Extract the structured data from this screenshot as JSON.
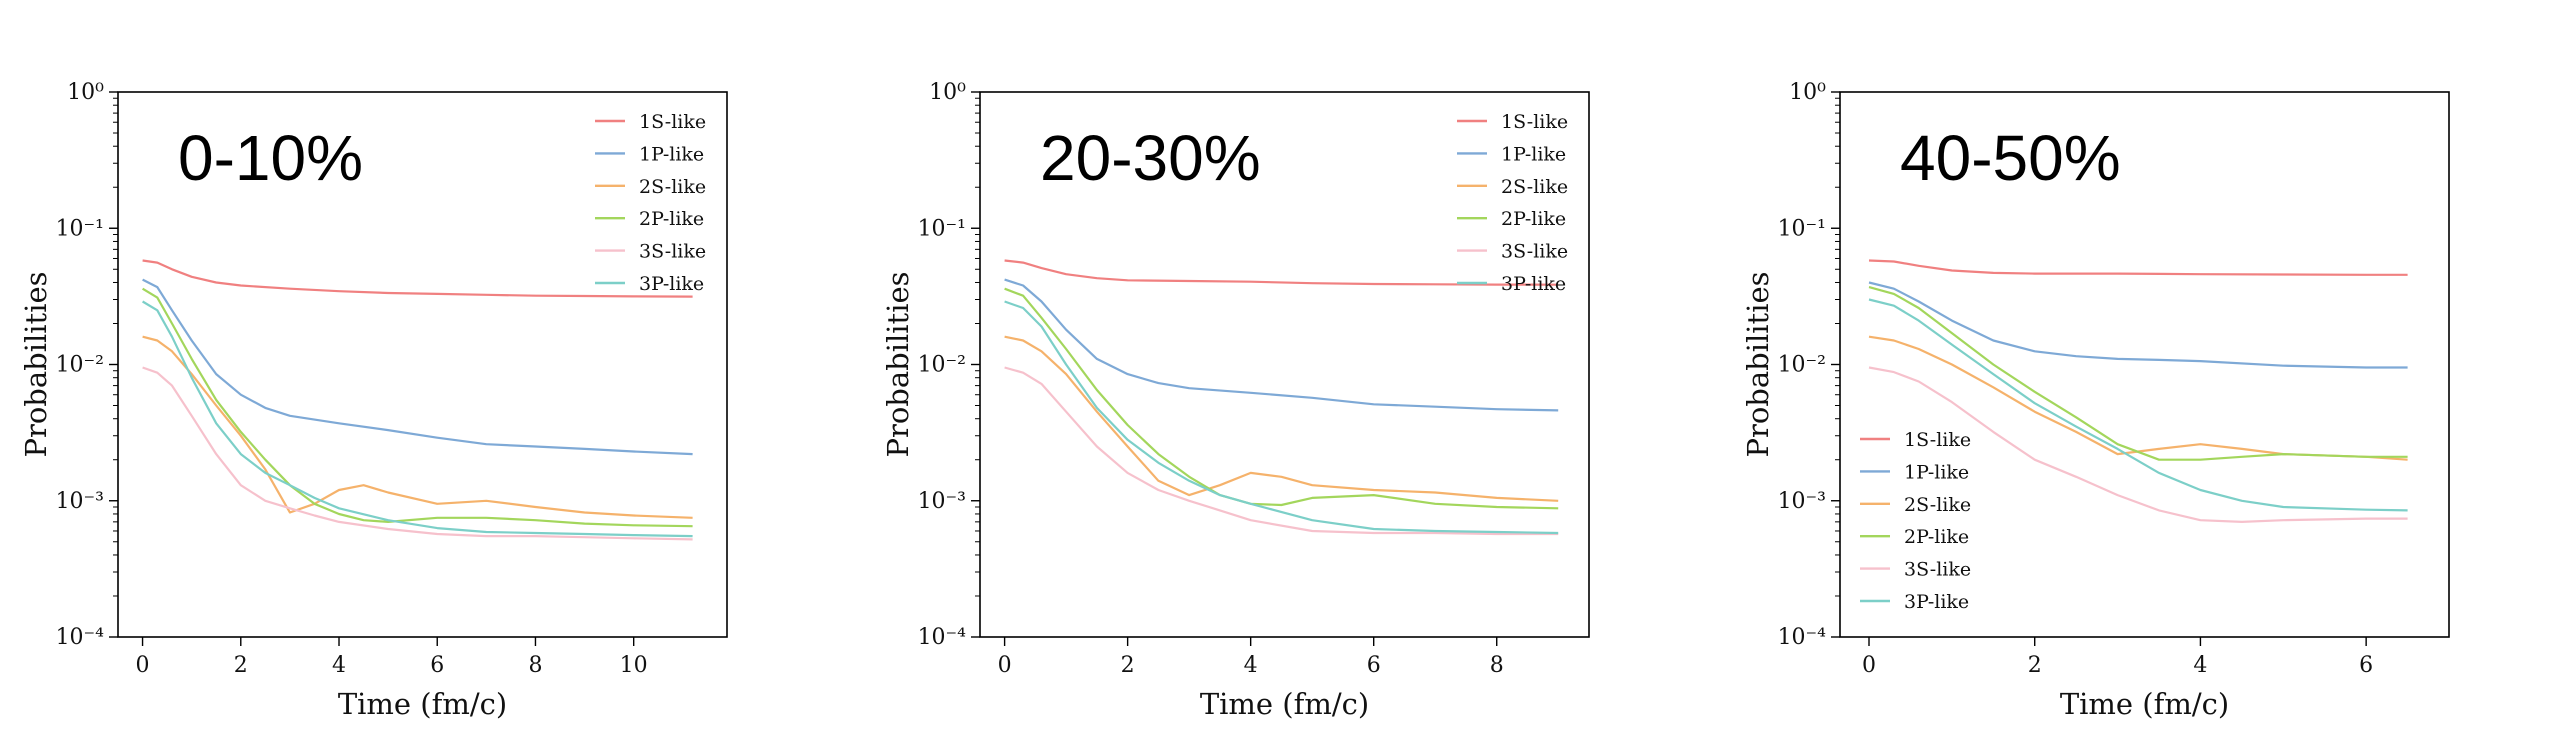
{
  "chart_data": [
    {
      "type": "line",
      "title": "0-10%",
      "xlabel": "Time (fm/c)",
      "ylabel": "Probabilities",
      "yscale": "log",
      "ylim": [
        0.0001,
        1
      ],
      "xlim": [
        -0.5,
        11.9
      ],
      "xticks": [
        0,
        2,
        4,
        6,
        8,
        10
      ],
      "legend_position": "top-right",
      "series": [
        {
          "name": "1S-like",
          "color": "#f08080",
          "x": [
            0,
            0.3,
            0.6,
            1,
            1.5,
            2,
            3,
            4,
            5,
            6,
            7,
            8,
            9,
            10,
            11.2
          ],
          "y": [
            0.058,
            0.056,
            0.05,
            0.044,
            0.04,
            0.038,
            0.036,
            0.0345,
            0.0335,
            0.033,
            0.0325,
            0.032,
            0.0318,
            0.0316,
            0.0315
          ]
        },
        {
          "name": "1P-like",
          "color": "#7ea9d6",
          "x": [
            0,
            0.3,
            0.6,
            1,
            1.5,
            2,
            2.5,
            3,
            4,
            5,
            6,
            7,
            8,
            9,
            10,
            11.2
          ],
          "y": [
            0.042,
            0.037,
            0.025,
            0.015,
            0.0085,
            0.006,
            0.0048,
            0.0042,
            0.0037,
            0.0033,
            0.0029,
            0.0026,
            0.0025,
            0.0024,
            0.0023,
            0.0022
          ]
        },
        {
          "name": "2S-like",
          "color": "#f5b26b",
          "x": [
            0,
            0.3,
            0.6,
            1,
            1.5,
            2,
            2.5,
            3,
            3.5,
            4,
            4.5,
            5,
            6,
            7,
            8,
            9,
            10,
            11.2
          ],
          "y": [
            0.016,
            0.015,
            0.0125,
            0.0085,
            0.005,
            0.003,
            0.0017,
            0.00082,
            0.00095,
            0.0012,
            0.0013,
            0.00115,
            0.00095,
            0.001,
            0.0009,
            0.00082,
            0.00078,
            0.00075
          ]
        },
        {
          "name": "2P-like",
          "color": "#a3d65c",
          "x": [
            0,
            0.3,
            0.6,
            1,
            1.5,
            2,
            2.5,
            3,
            3.5,
            4,
            4.5,
            5,
            6,
            7,
            8,
            9,
            10,
            11.2
          ],
          "y": [
            0.036,
            0.031,
            0.02,
            0.011,
            0.0055,
            0.0032,
            0.002,
            0.0013,
            0.00095,
            0.0008,
            0.00072,
            0.0007,
            0.00075,
            0.00075,
            0.00072,
            0.00068,
            0.00066,
            0.00065
          ]
        },
        {
          "name": "3S-like",
          "color": "#f6c1cc",
          "x": [
            0,
            0.3,
            0.6,
            1,
            1.5,
            2,
            2.5,
            3,
            3.5,
            4,
            5,
            6,
            7,
            8,
            9,
            10,
            11.2
          ],
          "y": [
            0.0095,
            0.0087,
            0.007,
            0.0042,
            0.0022,
            0.0013,
            0.001,
            0.00088,
            0.00078,
            0.0007,
            0.00062,
            0.00057,
            0.00055,
            0.00055,
            0.00054,
            0.00053,
            0.00052
          ]
        },
        {
          "name": "3P-like",
          "color": "#7ccfc8",
          "x": [
            0,
            0.3,
            0.6,
            1,
            1.5,
            2,
            2.5,
            3,
            3.5,
            4,
            5,
            6,
            7,
            8,
            9,
            10,
            11.2
          ],
          "y": [
            0.029,
            0.025,
            0.016,
            0.008,
            0.0037,
            0.0022,
            0.0016,
            0.0013,
            0.00105,
            0.00088,
            0.00072,
            0.00063,
            0.00059,
            0.00058,
            0.00057,
            0.00056,
            0.00055
          ]
        }
      ]
    },
    {
      "type": "line",
      "title": "20-30%",
      "xlabel": "Time (fm/c)",
      "ylabel": "Probabilities",
      "yscale": "log",
      "ylim": [
        0.0001,
        1
      ],
      "xlim": [
        -0.4,
        9.5
      ],
      "xticks": [
        0,
        2,
        4,
        6,
        8
      ],
      "legend_position": "top-right",
      "series": [
        {
          "name": "1S-like",
          "color": "#f08080",
          "x": [
            0,
            0.3,
            0.6,
            1,
            1.5,
            2,
            3,
            4,
            5,
            6,
            7,
            8,
            9
          ],
          "y": [
            0.058,
            0.056,
            0.051,
            0.046,
            0.043,
            0.0415,
            0.041,
            0.0405,
            0.0395,
            0.039,
            0.0388,
            0.0386,
            0.0385
          ]
        },
        {
          "name": "1P-like",
          "color": "#7ea9d6",
          "x": [
            0,
            0.3,
            0.6,
            1,
            1.5,
            2,
            2.5,
            3,
            4,
            5,
            6,
            7,
            8,
            9
          ],
          "y": [
            0.042,
            0.038,
            0.029,
            0.018,
            0.011,
            0.0085,
            0.0073,
            0.0067,
            0.0062,
            0.0057,
            0.0051,
            0.0049,
            0.0047,
            0.0046
          ]
        },
        {
          "name": "2S-like",
          "color": "#f5b26b",
          "x": [
            0,
            0.3,
            0.6,
            1,
            1.5,
            2,
            2.5,
            3,
            3.5,
            4,
            4.5,
            5,
            6,
            7,
            8,
            9
          ],
          "y": [
            0.016,
            0.015,
            0.0125,
            0.0085,
            0.0045,
            0.0025,
            0.0014,
            0.0011,
            0.0013,
            0.0016,
            0.0015,
            0.0013,
            0.0012,
            0.00115,
            0.00105,
            0.001
          ]
        },
        {
          "name": "2P-like",
          "color": "#a3d65c",
          "x": [
            0,
            0.3,
            0.6,
            1,
            1.5,
            2,
            2.5,
            3,
            3.5,
            4,
            4.5,
            5,
            6,
            7,
            8,
            9
          ],
          "y": [
            0.036,
            0.032,
            0.022,
            0.013,
            0.0065,
            0.0036,
            0.0022,
            0.0015,
            0.0011,
            0.00095,
            0.00093,
            0.00105,
            0.0011,
            0.00095,
            0.0009,
            0.00088
          ]
        },
        {
          "name": "3S-like",
          "color": "#f6c1cc",
          "x": [
            0,
            0.3,
            0.6,
            1,
            1.5,
            2,
            2.5,
            3,
            3.5,
            4,
            5,
            6,
            7,
            8,
            9
          ],
          "y": [
            0.0095,
            0.0087,
            0.0072,
            0.0045,
            0.0025,
            0.0016,
            0.0012,
            0.001,
            0.00085,
            0.00072,
            0.0006,
            0.00058,
            0.00058,
            0.00057,
            0.00057
          ]
        },
        {
          "name": "3P-like",
          "color": "#7ccfc8",
          "x": [
            0,
            0.3,
            0.6,
            1,
            1.5,
            2,
            2.5,
            3,
            3.5,
            4,
            5,
            6,
            7,
            8,
            9
          ],
          "y": [
            0.029,
            0.026,
            0.019,
            0.01,
            0.0048,
            0.0028,
            0.0019,
            0.0014,
            0.0011,
            0.00095,
            0.00072,
            0.00062,
            0.0006,
            0.00059,
            0.00058
          ]
        }
      ]
    },
    {
      "type": "line",
      "title": "40-50%",
      "xlabel": "Time (fm/c)",
      "ylabel": "Probabilities",
      "yscale": "log",
      "ylim": [
        0.0001,
        1
      ],
      "xlim": [
        -0.35,
        7.0
      ],
      "xticks": [
        0,
        2,
        4,
        6
      ],
      "legend_position": "bottom-left",
      "series": [
        {
          "name": "1S-like",
          "color": "#f08080",
          "x": [
            0,
            0.3,
            0.6,
            1,
            1.5,
            2,
            3,
            4,
            5,
            6,
            6.5
          ],
          "y": [
            0.058,
            0.057,
            0.053,
            0.049,
            0.047,
            0.0465,
            0.0465,
            0.046,
            0.0458,
            0.0455,
            0.0455
          ]
        },
        {
          "name": "1P-like",
          "color": "#7ea9d6",
          "x": [
            0,
            0.3,
            0.6,
            1,
            1.5,
            2,
            2.5,
            3,
            3.5,
            4,
            5,
            6,
            6.5
          ],
          "y": [
            0.04,
            0.036,
            0.029,
            0.021,
            0.015,
            0.0125,
            0.0115,
            0.011,
            0.0108,
            0.0106,
            0.0098,
            0.0095,
            0.0095
          ]
        },
        {
          "name": "2S-like",
          "color": "#f5b26b",
          "x": [
            0,
            0.3,
            0.6,
            1,
            1.5,
            2,
            2.5,
            3,
            3.5,
            4,
            4.5,
            5,
            6,
            6.5
          ],
          "y": [
            0.016,
            0.015,
            0.013,
            0.01,
            0.0068,
            0.0045,
            0.0032,
            0.0022,
            0.0024,
            0.0026,
            0.0024,
            0.0022,
            0.0021,
            0.002
          ]
        },
        {
          "name": "2P-like",
          "color": "#a3d65c",
          "x": [
            0,
            0.3,
            0.6,
            1,
            1.5,
            2,
            2.5,
            3,
            3.5,
            4,
            4.5,
            5,
            6,
            6.5
          ],
          "y": [
            0.037,
            0.033,
            0.026,
            0.017,
            0.01,
            0.0063,
            0.0041,
            0.0026,
            0.002,
            0.002,
            0.0021,
            0.0022,
            0.0021,
            0.0021
          ]
        },
        {
          "name": "3S-like",
          "color": "#f6c1cc",
          "x": [
            0,
            0.3,
            0.6,
            1,
            1.5,
            2,
            2.5,
            3,
            3.5,
            4,
            4.5,
            5,
            6,
            6.5
          ],
          "y": [
            0.0095,
            0.0088,
            0.0075,
            0.0053,
            0.0032,
            0.002,
            0.0015,
            0.0011,
            0.00085,
            0.00072,
            0.0007,
            0.00072,
            0.00074,
            0.00074
          ]
        },
        {
          "name": "3P-like",
          "color": "#7ccfc8",
          "x": [
            0,
            0.3,
            0.6,
            1,
            1.5,
            2,
            2.5,
            3,
            3.5,
            4,
            4.5,
            5,
            6,
            6.5
          ],
          "y": [
            0.03,
            0.027,
            0.021,
            0.014,
            0.0085,
            0.0052,
            0.0035,
            0.0024,
            0.0016,
            0.0012,
            0.001,
            0.0009,
            0.00086,
            0.00085
          ]
        }
      ]
    }
  ]
}
